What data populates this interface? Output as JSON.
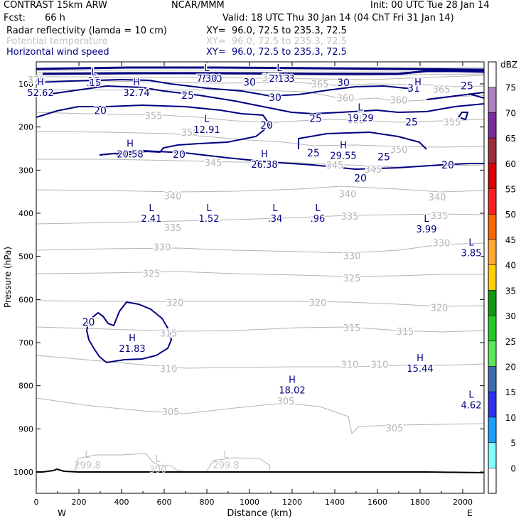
{
  "header": {
    "title": "CONTRAST 15km ARW",
    "institution": "NCAR/MMM",
    "init": "Init: 00 UTC Tue 28 Jan 14",
    "fcst_label": "Fcst:",
    "fcst_value": "66 h",
    "valid": "Valid: 18 UTC Thu 30 Jan 14 (04 ChT Fri 31 Jan 14)"
  },
  "fields": [
    {
      "name": "Radar reflectivity (lamda = 10 cm)",
      "xy": "XY=  96.0, 72.5 to 235.3, 72.5",
      "color": "#000000"
    },
    {
      "name": "Potential temperature",
      "xy": "XY=  96.0, 72.5 to 235.3, 72.5",
      "color": "#c4c4c4"
    },
    {
      "name": "Horizontal wind speed",
      "xy": "XY=  96.0, 72.5 to 235.3, 72.5",
      "color": "#000080"
    }
  ],
  "chart_data": {
    "type": "contour",
    "xlabel": "Distance (km)",
    "ylabel": "Pressure (hPa)",
    "xlim": [
      0,
      2100
    ],
    "ylim": [
      1050,
      70
    ],
    "x_ticks": [
      0,
      200,
      400,
      600,
      800,
      1000,
      1200,
      1400,
      1600,
      1800,
      2000
    ],
    "y_ticks": [
      100,
      200,
      300,
      400,
      500,
      600,
      700,
      800,
      900,
      1000
    ],
    "west_label": "W",
    "east_label": "E",
    "theta_labels": [
      {
        "text": "370",
        "x": 0,
        "p": 90
      },
      {
        "text": "375",
        "x": 1100,
        "p": 85
      },
      {
        "text": "365",
        "x": 1330,
        "p": 100
      },
      {
        "text": "360",
        "x": 1450,
        "p": 132
      },
      {
        "text": "360",
        "x": 1700,
        "p": 137
      },
      {
        "text": "365",
        "x": 1900,
        "p": 112
      },
      {
        "text": "355",
        "x": 550,
        "p": 173
      },
      {
        "text": "355",
        "x": 1500,
        "p": 183
      },
      {
        "text": "355",
        "x": 1950,
        "p": 188
      },
      {
        "text": "350",
        "x": 720,
        "p": 212
      },
      {
        "text": "350",
        "x": 1700,
        "p": 252
      },
      {
        "text": "345",
        "x": 830,
        "p": 282
      },
      {
        "text": "345",
        "x": 1400,
        "p": 288
      },
      {
        "text": "345",
        "x": 1580,
        "p": 298
      },
      {
        "text": "340",
        "x": 640,
        "p": 360
      },
      {
        "text": "340",
        "x": 1460,
        "p": 355
      },
      {
        "text": "340",
        "x": 1880,
        "p": 362
      },
      {
        "text": "335",
        "x": 640,
        "p": 433
      },
      {
        "text": "335",
        "x": 1470,
        "p": 407
      },
      {
        "text": "335",
        "x": 1890,
        "p": 405
      },
      {
        "text": "330",
        "x": 590,
        "p": 478
      },
      {
        "text": "330",
        "x": 1480,
        "p": 498
      },
      {
        "text": "330",
        "x": 1900,
        "p": 468
      },
      {
        "text": "325",
        "x": 540,
        "p": 539
      },
      {
        "text": "325",
        "x": 1480,
        "p": 550
      },
      {
        "text": "320",
        "x": 650,
        "p": 607
      },
      {
        "text": "320",
        "x": 1320,
        "p": 607
      },
      {
        "text": "320",
        "x": 1890,
        "p": 618
      },
      {
        "text": "315",
        "x": 620,
        "p": 678
      },
      {
        "text": "315",
        "x": 1480,
        "p": 665
      },
      {
        "text": "315",
        "x": 1730,
        "p": 674
      },
      {
        "text": "310",
        "x": 620,
        "p": 760
      },
      {
        "text": "310",
        "x": 1470,
        "p": 750
      },
      {
        "text": "310",
        "x": 1610,
        "p": 750
      },
      {
        "text": "305",
        "x": 630,
        "p": 860
      },
      {
        "text": "305",
        "x": 1170,
        "p": 835
      },
      {
        "text": "305",
        "x": 1680,
        "p": 898
      }
    ],
    "wind_labels": [
      {
        "text": "15",
        "x": 270,
        "p": 93
      },
      {
        "text": "7.30",
        "x": 820,
        "p": 88
      },
      {
        "text": "2.13",
        "x": 1160,
        "p": 88
      },
      {
        "text": "30",
        "x": 1000,
        "p": 96
      },
      {
        "text": "30",
        "x": 1440,
        "p": 97
      },
      {
        "text": "31",
        "x": 1770,
        "p": 110
      },
      {
        "text": "25",
        "x": 2020,
        "p": 104
      },
      {
        "text": "25",
        "x": 710,
        "p": 126
      },
      {
        "text": "30",
        "x": 1120,
        "p": 131
      },
      {
        "text": "20",
        "x": 300,
        "p": 162
      },
      {
        "text": "25",
        "x": 1310,
        "p": 180
      },
      {
        "text": "25",
        "x": 1760,
        "p": 188
      },
      {
        "text": "20",
        "x": 1080,
        "p": 196
      },
      {
        "text": "20",
        "x": 670,
        "p": 263
      },
      {
        "text": "25",
        "x": 1300,
        "p": 260
      },
      {
        "text": "25",
        "x": 1630,
        "p": 269
      },
      {
        "text": "20",
        "x": 1520,
        "p": 318
      },
      {
        "text": "20",
        "x": 1930,
        "p": 288
      },
      {
        "text": "20",
        "x": 245,
        "p": 652
      }
    ],
    "extrema": [
      {
        "kind": "H",
        "value": "52.62",
        "x": 20,
        "p": 103
      },
      {
        "kind": "L",
        "value": ".15",
        "x": 270,
        "p": 80
      },
      {
        "kind": "H",
        "value": "32.74",
        "x": 470,
        "p": 103
      },
      {
        "kind": "L",
        "value": "7.30",
        "x": 800,
        "p": 70
      },
      {
        "kind": "L",
        "value": "2.13",
        "x": 1140,
        "p": 70
      },
      {
        "kind": "H",
        "value": "",
        "x": 1790,
        "p": 103
      },
      {
        "kind": "L",
        "value": "19.29",
        "x": 1520,
        "p": 162
      },
      {
        "kind": "L",
        "value": "12.91",
        "x": 800,
        "p": 189
      },
      {
        "kind": "H",
        "value": "20.58",
        "x": 440,
        "p": 246
      },
      {
        "kind": "H",
        "value": "26.38",
        "x": 1070,
        "p": 270
      },
      {
        "kind": "H",
        "value": "29.55",
        "x": 1440,
        "p": 249
      },
      {
        "kind": "L",
        "value": "2.41",
        "x": 540,
        "p": 395
      },
      {
        "kind": "L",
        "value": "1.52",
        "x": 810,
        "p": 395
      },
      {
        "kind": "L",
        "value": ".34",
        "x": 1120,
        "p": 395
      },
      {
        "kind": "L",
        "value": ".96",
        "x": 1320,
        "p": 395
      },
      {
        "kind": "L",
        "value": "3.99",
        "x": 1830,
        "p": 420
      },
      {
        "kind": "L",
        "value": "3.85",
        "x": 2040,
        "p": 475
      },
      {
        "kind": "H",
        "value": "21.83",
        "x": 450,
        "p": 697
      },
      {
        "kind": "H",
        "value": "18.02",
        "x": 1200,
        "p": 793
      },
      {
        "kind": "H",
        "value": "15.44",
        "x": 1800,
        "p": 743
      },
      {
        "kind": "L",
        "value": "4.62",
        "x": 2040,
        "p": 828
      }
    ],
    "surface_labels": [
      {
        "kind": "L",
        "value": "299.8",
        "x": 240,
        "p": 980
      },
      {
        "kind": "L",
        "value": "300",
        "x": 570,
        "p": 990
      },
      {
        "kind": "L",
        "value": "299.8",
        "x": 890,
        "p": 980
      }
    ],
    "colorbar": {
      "unit": "dBZ",
      "levels": [
        0,
        5,
        10,
        15,
        20,
        25,
        30,
        35,
        40,
        45,
        50,
        55,
        60,
        65,
        70,
        75
      ],
      "colors": [
        "#ffffff",
        "#80ffff",
        "#1aa0ff",
        "#3030f0",
        "#3c6cb4",
        "#5ce65c",
        "#22cc22",
        "#119911",
        "#ffd000",
        "#ffaa30",
        "#ff6600",
        "#ff2020",
        "#dd0000",
        "#9c2c3c",
        "#7c2c9c",
        "#b080c0",
        "#ffffff"
      ]
    }
  }
}
